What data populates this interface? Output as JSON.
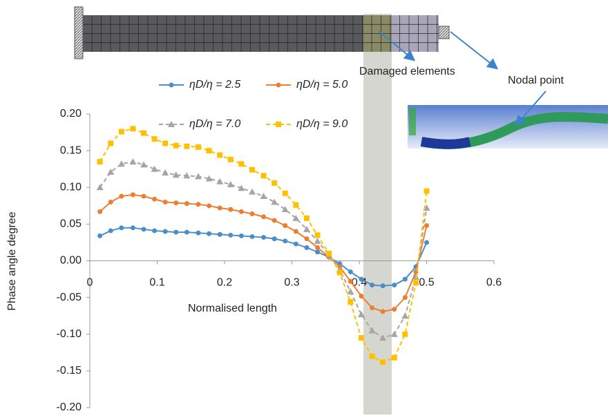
{
  "chart_data": {
    "type": "line",
    "x_label": "Normalised length",
    "y_label": "Phase angle degree",
    "annotations": [
      "Damaged elements",
      "Nodal point"
    ],
    "x": [
      0.015,
      0.031,
      0.047,
      0.064,
      0.08,
      0.096,
      0.112,
      0.128,
      0.144,
      0.161,
      0.177,
      0.193,
      0.209,
      0.225,
      0.241,
      0.258,
      0.274,
      0.29,
      0.306,
      0.322,
      0.338,
      0.355,
      0.371,
      0.387,
      0.403,
      0.419,
      0.435,
      0.452,
      0.468,
      0.484,
      0.5
    ],
    "series": [
      {
        "name": "ηD/η = 2.5",
        "color": "#4a8ec9",
        "dash": false,
        "marker": "circle",
        "values": [
          0.034,
          0.041,
          0.045,
          0.045,
          0.043,
          0.041,
          0.04,
          0.039,
          0.039,
          0.038,
          0.037,
          0.036,
          0.035,
          0.034,
          0.033,
          0.032,
          0.03,
          0.027,
          0.023,
          0.018,
          0.012,
          0.005,
          -0.004,
          -0.015,
          -0.025,
          -0.033,
          -0.034,
          -0.033,
          -0.025,
          -0.008,
          0.025
        ]
      },
      {
        "name": "ηD/η = 5.0",
        "color": "#ed7d31",
        "dash": false,
        "marker": "circle",
        "values": [
          0.067,
          0.08,
          0.088,
          0.09,
          0.088,
          0.084,
          0.08,
          0.079,
          0.078,
          0.077,
          0.075,
          0.072,
          0.07,
          0.067,
          0.064,
          0.06,
          0.055,
          0.048,
          0.04,
          0.03,
          0.018,
          0.005,
          -0.008,
          -0.028,
          -0.048,
          -0.064,
          -0.069,
          -0.066,
          -0.05,
          -0.015,
          0.048
        ]
      },
      {
        "name": "ηD/η = 7.0",
        "color": "#a5a5a5",
        "dash": true,
        "marker": "triangle",
        "values": [
          0.1,
          0.121,
          0.132,
          0.135,
          0.131,
          0.125,
          0.12,
          0.117,
          0.116,
          0.115,
          0.112,
          0.108,
          0.104,
          0.099,
          0.094,
          0.088,
          0.08,
          0.07,
          0.058,
          0.043,
          0.027,
          0.008,
          -0.012,
          -0.042,
          -0.073,
          -0.095,
          -0.105,
          -0.1,
          -0.075,
          -0.022,
          0.072
        ]
      },
      {
        "name": "ηD/η = 9.0",
        "color": "#ffc000",
        "dash": true,
        "marker": "square",
        "values": [
          0.135,
          0.16,
          0.176,
          0.18,
          0.174,
          0.166,
          0.16,
          0.157,
          0.156,
          0.155,
          0.15,
          0.144,
          0.138,
          0.132,
          0.124,
          0.116,
          0.106,
          0.092,
          0.076,
          0.058,
          0.035,
          0.01,
          -0.016,
          -0.056,
          -0.105,
          -0.13,
          -0.138,
          -0.132,
          -0.1,
          -0.03,
          0.095
        ]
      }
    ],
    "xlim": [
      0,
      0.6
    ],
    "xticks": [
      0,
      0.1,
      0.2,
      0.3,
      0.4,
      0.5,
      0.6
    ],
    "ylim": [
      -0.2,
      0.2
    ],
    "yticks": [
      {
        "value": -0.2,
        "label": "-0.20"
      },
      {
        "value": -0.15,
        "label": "-0.15"
      },
      {
        "value": -0.1,
        "label": "-0.10"
      },
      {
        "value": -0.05,
        "label": "-0.05"
      },
      {
        "value": 0,
        "label": "0.00"
      },
      {
        "value": 0.05,
        "label": "0.05"
      },
      {
        "value": 0.1,
        "label": "0.10"
      },
      {
        "value": 0.15,
        "label": "0.15"
      },
      {
        "value": 0.2,
        "label": "0.20"
      }
    ],
    "grid": false
  }
}
